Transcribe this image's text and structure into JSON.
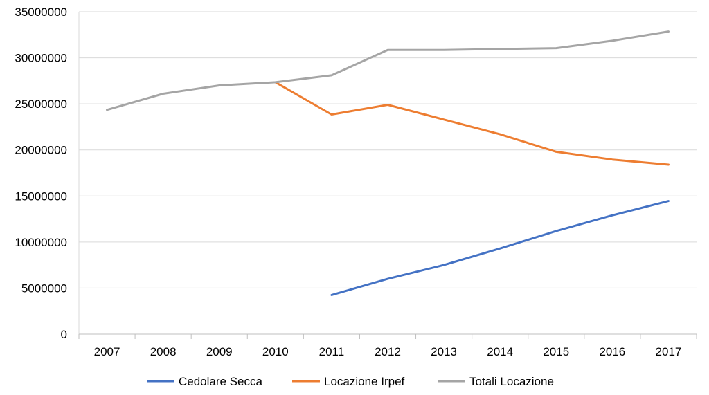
{
  "chart_data": {
    "type": "line",
    "title": "",
    "xlabel": "",
    "ylabel": "",
    "categories": [
      "2007",
      "2008",
      "2009",
      "2010",
      "2011",
      "2012",
      "2013",
      "2014",
      "2015",
      "2016",
      "2017"
    ],
    "y_ticks": [
      "0",
      "5000000",
      "10000000",
      "15000000",
      "20000000",
      "25000000",
      "30000000",
      "35000000"
    ],
    "ylim": [
      0,
      35000000
    ],
    "grid": "horizontal",
    "legend_position": "bottom",
    "series": [
      {
        "name": "Cedolare Secca",
        "color": "#4472C4",
        "values": [
          null,
          null,
          null,
          null,
          4250000,
          6000000,
          7500000,
          9300000,
          11200000,
          12900000,
          14450000
        ]
      },
      {
        "name": "Locazione Irpef",
        "color": "#ED7D31",
        "values": [
          null,
          null,
          null,
          27350000,
          23850000,
          24900000,
          23300000,
          21700000,
          19800000,
          18950000,
          18400000
        ]
      },
      {
        "name": "Totali Locazione",
        "color": "#A5A5A5",
        "values": [
          24350000,
          26100000,
          27000000,
          27350000,
          28100000,
          30850000,
          30850000,
          30950000,
          31050000,
          31850000,
          32850000
        ]
      }
    ]
  }
}
